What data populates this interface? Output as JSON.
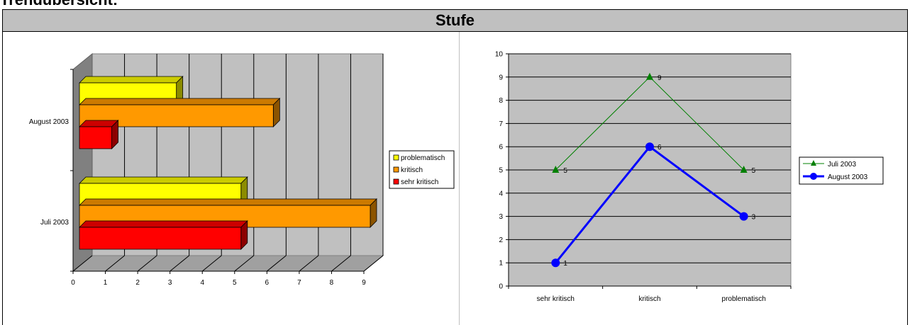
{
  "page_title": "Trendübersicht:",
  "panel_title": "Stufe",
  "colors": {
    "problematisch": "#ffff00",
    "kritisch": "#ff9900",
    "sehr_kritisch": "#ff0000",
    "juli_line": "#008000",
    "august_line": "#0000ff",
    "plot_bg": "#c0c0c0"
  },
  "chart_data": [
    {
      "type": "bar",
      "orientation": "horizontal-3d",
      "categories": [
        "August 2003",
        "Juli 2003"
      ],
      "series": [
        {
          "name": "problematisch",
          "values": [
            3,
            5
          ]
        },
        {
          "name": "kritisch",
          "values": [
            6,
            9
          ]
        },
        {
          "name": "sehr kritisch",
          "values": [
            1,
            5
          ]
        }
      ],
      "xlim": [
        0,
        9
      ],
      "x_ticks": [
        "0",
        "1",
        "2",
        "3",
        "4",
        "5",
        "6",
        "7",
        "8",
        "9"
      ],
      "legend": [
        "problematisch",
        "kritisch",
        "sehr kritisch"
      ],
      "legend_position": "right",
      "grid": true
    },
    {
      "type": "line",
      "categories": [
        "sehr kritisch",
        "kritisch",
        "problematisch"
      ],
      "series": [
        {
          "name": "Juli 2003",
          "values": [
            5,
            9,
            5
          ],
          "marker": "triangle",
          "labels": [
            "5",
            "9",
            "5"
          ]
        },
        {
          "name": "August 2003",
          "values": [
            1,
            6,
            3
          ],
          "marker": "circle",
          "labels": [
            "1",
            "6",
            "3"
          ]
        }
      ],
      "ylim": [
        0,
        10
      ],
      "y_ticks": [
        "0",
        "1",
        "2",
        "3",
        "4",
        "5",
        "6",
        "7",
        "8",
        "9",
        "10"
      ],
      "legend": [
        "Juli 2003",
        "August 2003"
      ],
      "legend_position": "right",
      "grid": true
    }
  ]
}
